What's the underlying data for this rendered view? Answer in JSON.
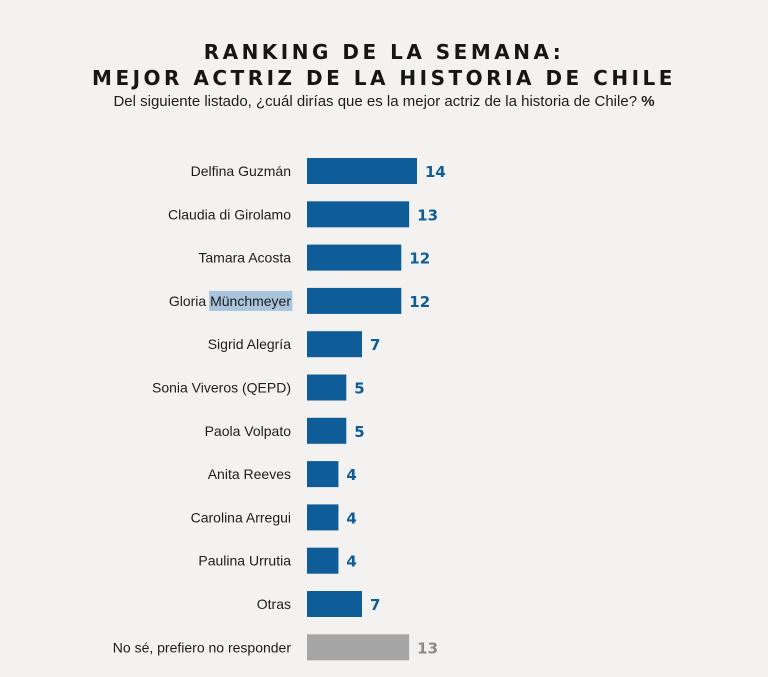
{
  "chart_data": {
    "type": "bar",
    "orientation": "horizontal",
    "title": [
      "RANKING DE LA SEMANA:",
      "MEJOR ACTRIZ DE LA HISTORIA DE CHILE"
    ],
    "subtitle": "Del siguiente listado, ¿cuál dirías que es la mejor actriz de la historia de Chile?",
    "unit_label": "%",
    "categories": [
      "Delfina Guzmán",
      "Claudia di Girolamo",
      "Tamara Acosta",
      "Gloria Münchmeyer",
      "Sigrid Alegría",
      "Sonia Viveros (QEPD)",
      "Paola Volpato",
      "Anita Reeves",
      "Carolina Arregui",
      "Paulina Urrutia",
      "Otras",
      "No sé, prefiero no responder"
    ],
    "values": [
      14,
      13,
      12,
      12,
      7,
      5,
      5,
      4,
      4,
      4,
      7,
      13
    ],
    "xlim": [
      0,
      14
    ],
    "colors": {
      "primary": "#0e5c98",
      "neutral": "#a6a6a6",
      "primary_label": "#0e5c98",
      "neutral_label": "#8a8a8a",
      "highlight": "#a9c4dc"
    },
    "neutral_categories": [
      "No sé, prefiero no responder"
    ],
    "highlighted_text": "Münchmeyer"
  }
}
